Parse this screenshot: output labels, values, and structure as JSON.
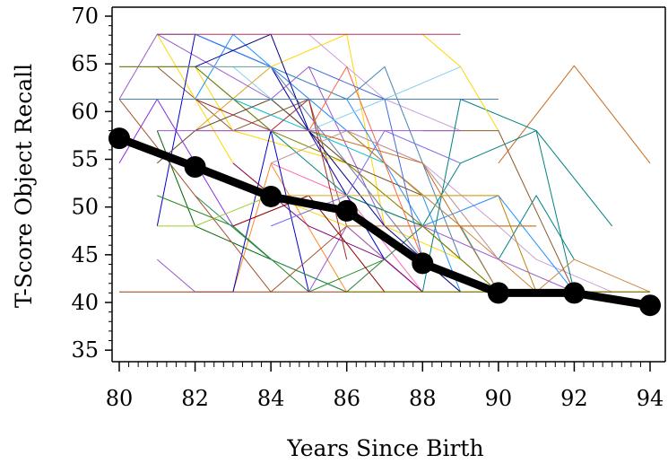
{
  "chart_data": {
    "type": "line",
    "title": "",
    "xlabel": "Years Since Birth",
    "ylabel": "T-Score Object Recall",
    "xlim": [
      80,
      94
    ],
    "ylim": [
      35,
      70
    ],
    "x_ticks": [
      80,
      82,
      84,
      86,
      88,
      90,
      92,
      94
    ],
    "y_ticks": [
      35,
      40,
      45,
      50,
      55,
      60,
      65,
      70
    ],
    "x_tick_labels": [
      "80",
      "82",
      "84",
      "86",
      "88",
      "90",
      "92",
      "94"
    ],
    "y_tick_labels": [
      "35",
      "40",
      "45",
      "50",
      "55",
      "60",
      "65",
      "70"
    ],
    "grid": false,
    "legend": "none",
    "mean_series": {
      "color": "#000000",
      "x": [
        80,
        82,
        84,
        86,
        88,
        90,
        92,
        94
      ],
      "y": [
        57.2,
        54.2,
        51.1,
        49.6,
        44.1,
        41.0,
        41.0,
        39.7
      ]
    },
    "individual_series": [
      {
        "color": "#ff8a2a",
        "x": [
          83,
          84,
          86,
          88
        ],
        "y": [
          41.1,
          54.5,
          41.1,
          48.0
        ]
      },
      {
        "color": "#c86a1e",
        "x": [
          90,
          92,
          94
        ],
        "y": [
          54.6,
          64.8,
          54.6
        ]
      },
      {
        "color": "#8b5a2b",
        "x": [
          81,
          83,
          85,
          86,
          88
        ],
        "y": [
          64.7,
          58.0,
          61.3,
          48.0,
          41.1
        ]
      },
      {
        "color": "#ffd700",
        "x": [
          81,
          83,
          84,
          86,
          88
        ],
        "y": [
          68.1,
          54.6,
          51.2,
          48.0,
          41.1
        ]
      },
      {
        "color": "#ffd700",
        "x": [
          84,
          86,
          87,
          89
        ],
        "y": [
          64.7,
          68.1,
          48.0,
          44.5
        ]
      },
      {
        "color": "#ffd700",
        "x": [
          82,
          83,
          86,
          88,
          89
        ],
        "y": [
          64.7,
          58.0,
          54.6,
          48.0,
          44.5
        ]
      },
      {
        "color": "#daa520",
        "x": [
          82,
          84,
          86,
          88,
          90
        ],
        "y": [
          58.0,
          64.7,
          51.2,
          48.0,
          41.1
        ]
      },
      {
        "color": "#ff69b4",
        "x": [
          84,
          86,
          88
        ],
        "y": [
          54.6,
          51.2,
          41.1
        ]
      },
      {
        "color": "#ff00ff",
        "x": [
          82,
          84,
          86,
          88,
          90
        ],
        "y": [
          68.1,
          64.7,
          54.6,
          44.5,
          41.1
        ]
      },
      {
        "color": "#9b59d0",
        "x": [
          80,
          81,
          84,
          85,
          87
        ],
        "y": [
          61.3,
          68.1,
          61.3,
          64.7,
          48.0
        ]
      },
      {
        "color": "#9b59d0",
        "x": [
          81,
          82,
          83
        ],
        "y": [
          44.5,
          41.1,
          41.1
        ]
      },
      {
        "color": "#9b59d0",
        "x": [
          85,
          86,
          88
        ],
        "y": [
          41.1,
          48.0,
          41.1
        ]
      },
      {
        "color": "#8a2be2",
        "x": [
          80,
          81,
          83,
          84
        ],
        "y": [
          54.6,
          61.3,
          48.0,
          44.5
        ]
      },
      {
        "color": "#c9a0dc",
        "x": [
          84,
          86,
          88,
          90,
          91,
          93
        ],
        "y": [
          64.7,
          58.0,
          54.6,
          48.0,
          44.5,
          41.1
        ]
      },
      {
        "color": "#c9a0dc",
        "x": [
          85,
          87,
          89
        ],
        "y": [
          68.1,
          61.3,
          58.0
        ]
      },
      {
        "color": "#800080",
        "x": [
          83,
          85,
          87,
          88
        ],
        "y": [
          54.6,
          48.0,
          44.5,
          41.1
        ]
      },
      {
        "color": "#0000cd",
        "x": [
          81,
          82,
          84,
          86,
          87
        ],
        "y": [
          48.0,
          68.1,
          64.7,
          51.2,
          44.5
        ]
      },
      {
        "color": "#0000cd",
        "x": [
          83,
          84,
          85
        ],
        "y": [
          41.1,
          58.0,
          41.1
        ]
      },
      {
        "color": "#1e90ff",
        "x": [
          81,
          82,
          84,
          86,
          88,
          89
        ],
        "y": [
          68.1,
          68.1,
          64.7,
          58.0,
          51.2,
          41.1
        ]
      },
      {
        "color": "#1e90ff",
        "x": [
          82,
          83,
          84,
          86,
          88,
          90,
          92
        ],
        "y": [
          61.3,
          68.1,
          64.7,
          61.3,
          48.0,
          51.2,
          41.1
        ]
      },
      {
        "color": "#4682b4",
        "x": [
          84,
          86,
          87,
          89
        ],
        "y": [
          64.7,
          61.3,
          64.7,
          44.5
        ]
      },
      {
        "color": "#87ceeb",
        "x": [
          83,
          85,
          87,
          89
        ],
        "y": [
          64.7,
          58.0,
          61.3,
          64.7
        ]
      },
      {
        "color": "#00bcd4",
        "x": [
          83,
          85,
          87,
          89,
          90
        ],
        "y": [
          61.3,
          58.0,
          54.6,
          48.0,
          41.1
        ]
      },
      {
        "color": "#006400",
        "x": [
          81,
          82,
          84,
          86
        ],
        "y": [
          58.0,
          48.0,
          44.5,
          41.1
        ]
      },
      {
        "color": "#228b22",
        "x": [
          81,
          83,
          85,
          87
        ],
        "y": [
          51.2,
          48.0,
          41.1,
          44.5
        ]
      },
      {
        "color": "#2e8b57",
        "x": [
          82,
          84,
          86,
          88,
          90
        ],
        "y": [
          51.2,
          44.5,
          41.1,
          48.0,
          41.1
        ]
      },
      {
        "color": "#008080",
        "x": [
          80,
          82,
          84,
          86,
          88,
          89,
          91,
          93
        ],
        "y": [
          64.7,
          64.7,
          58.0,
          51.2,
          48.0,
          54.6,
          58.0,
          48.0
        ]
      },
      {
        "color": "#008080",
        "x": [
          88,
          89,
          91,
          92
        ],
        "y": [
          41.1,
          61.3,
          58.0,
          41.1
        ]
      },
      {
        "color": "#008080",
        "x": [
          90,
          91,
          92
        ],
        "y": [
          44.5,
          51.2,
          44.5
        ]
      },
      {
        "color": "#5f9ea0",
        "x": [
          81,
          84,
          86,
          88
        ],
        "y": [
          64.7,
          64.7,
          54.6,
          44.5
        ]
      },
      {
        "color": "#808000",
        "x": [
          80,
          82,
          84,
          86,
          88,
          90
        ],
        "y": [
          64.7,
          64.7,
          58.0,
          54.6,
          48.0,
          41.1
        ]
      },
      {
        "color": "#9acd32",
        "x": [
          81,
          82,
          84
        ],
        "y": [
          48.0,
          48.0,
          51.2
        ]
      },
      {
        "color": "#a0522d",
        "x": [
          80,
          82,
          84,
          86
        ],
        "y": [
          61.3,
          51.2,
          41.1,
          48.0
        ]
      },
      {
        "color": "#a52a2a",
        "x": [
          82,
          84,
          85,
          86
        ],
        "y": [
          61.3,
          58.0,
          61.3,
          44.5
        ]
      },
      {
        "color": "#8b0000",
        "x": [
          83,
          85,
          87
        ],
        "y": [
          48.0,
          51.2,
          41.1
        ]
      },
      {
        "color": "#6b4226",
        "x": [
          81,
          82,
          84,
          86,
          88
        ],
        "y": [
          54.6,
          58.0,
          61.3,
          54.6,
          51.2
        ]
      },
      {
        "color": "#b8860b",
        "x": [
          86,
          88,
          90,
          91
        ],
        "y": [
          58.0,
          51.2,
          51.2,
          41.1
        ]
      },
      {
        "color": "#cd853f",
        "x": [
          87,
          89,
          91,
          92,
          94
        ],
        "y": [
          54.6,
          48.0,
          41.1,
          44.5,
          41.1
        ]
      },
      {
        "color": "#bc8f8f",
        "x": [
          84,
          86,
          88,
          90
        ],
        "y": [
          54.6,
          58.0,
          54.6,
          44.5
        ]
      },
      {
        "color": "#ff6347",
        "x": [
          85,
          86,
          88
        ],
        "y": [
          58.0,
          64.7,
          44.5
        ]
      },
      {
        "color": "#00008b",
        "x": [
          82,
          84,
          85,
          87,
          89
        ],
        "y": [
          64.7,
          68.1,
          58.0,
          48.0,
          41.1
        ]
      },
      {
        "color": "#7b68ee",
        "x": [
          84,
          86,
          87,
          89
        ],
        "y": [
          48.0,
          51.2,
          58.0,
          54.6
        ]
      },
      {
        "color": "#4169e1",
        "x": [
          85,
          87,
          88,
          90
        ],
        "y": [
          64.7,
          61.3,
          44.5,
          41.1
        ]
      },
      {
        "color": "#daa520",
        "x": [
          88,
          90,
          91
        ],
        "y": [
          48.0,
          48.0,
          48.0
        ]
      },
      {
        "color": "#ffd700",
        "x": [
          88,
          89,
          90
        ],
        "y": [
          68.1,
          64.7,
          58.0
        ]
      },
      {
        "color": "#c86a1e",
        "x": [
          82,
          85,
          88,
          90
        ],
        "y": [
          58.0,
          58.0,
          54.6,
          41.1
        ]
      },
      {
        "color": "#8b5a2b",
        "x": [
          88,
          90,
          92
        ],
        "y": [
          58.0,
          58.0,
          41.1
        ]
      },
      {
        "color": "#9b59d0",
        "x": [
          88,
          90,
          92,
          93
        ],
        "y": [
          48.0,
          44.5,
          41.1,
          41.1
        ]
      }
    ],
    "flat_series": [
      {
        "color": "#b03060",
        "x": [
          81,
          89
        ],
        "y": [
          68.1,
          68.1
        ]
      },
      {
        "color": "#4682b4",
        "x": [
          80,
          90
        ],
        "y": [
          61.3,
          61.3
        ]
      },
      {
        "color": "#9b59d0",
        "x": [
          81,
          89
        ],
        "y": [
          58.0,
          58.0
        ]
      },
      {
        "color": "#daa520",
        "x": [
          84,
          90
        ],
        "y": [
          51.2,
          51.2
        ]
      },
      {
        "color": "#c86a1e",
        "x": [
          86,
          91
        ],
        "y": [
          48.0,
          48.0
        ]
      },
      {
        "color": "#8b4513",
        "x": [
          80,
          94
        ],
        "y": [
          41.1,
          41.1
        ]
      },
      {
        "color": "#808000",
        "x": [
          86,
          94
        ],
        "y": [
          41.1,
          41.1
        ]
      }
    ]
  }
}
